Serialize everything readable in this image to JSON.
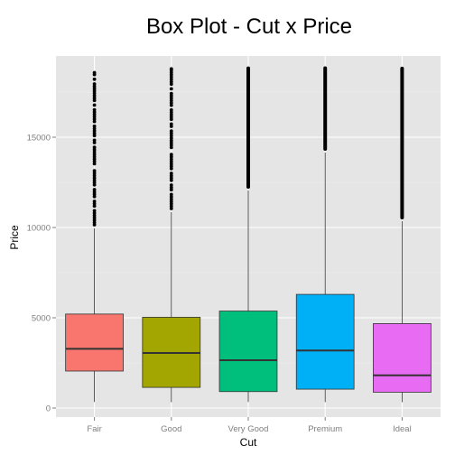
{
  "chart_data": {
    "type": "box",
    "title": "Box Plot - Cut x Price",
    "xlabel": "Cut",
    "ylabel": "Price",
    "ylim": [
      -500,
      19500
    ],
    "yticks": [
      0,
      5000,
      10000,
      15000
    ],
    "ytick_labels": [
      "0",
      "5000",
      "10000",
      "15000"
    ],
    "grid": true,
    "legend": "none",
    "panel_background": "#e5e5e5",
    "grid_color": "#ffffff",
    "categories": [
      "Fair",
      "Good",
      "Very Good",
      "Premium",
      "Ideal"
    ],
    "colors": [
      "#f8766d",
      "#a3a500",
      "#00bf7d",
      "#00b0f6",
      "#e76bf3"
    ],
    "boxes": [
      {
        "name": "Fair",
        "min": 337,
        "q1": 2050,
        "median": 3282,
        "q3": 5206,
        "whisker_high": 9950,
        "max": 18574
      },
      {
        "name": "Good",
        "min": 327,
        "q1": 1145,
        "median": 3050,
        "q3": 5028,
        "whisker_high": 10850,
        "max": 18788
      },
      {
        "name": "Very Good",
        "min": 336,
        "q1": 912,
        "median": 2648,
        "q3": 5373,
        "whisker_high": 12050,
        "max": 18818
      },
      {
        "name": "Premium",
        "min": 326,
        "q1": 1046,
        "median": 3185,
        "q3": 6296,
        "whisker_high": 14150,
        "max": 18823
      },
      {
        "name": "Ideal",
        "min": 326,
        "q1": 878,
        "median": 1810,
        "q3": 4678,
        "whisker_high": 10350,
        "max": 18806
      }
    ],
    "outlier_density": [
      "sparse",
      "sparse",
      "dense",
      "dense",
      "dense"
    ]
  }
}
